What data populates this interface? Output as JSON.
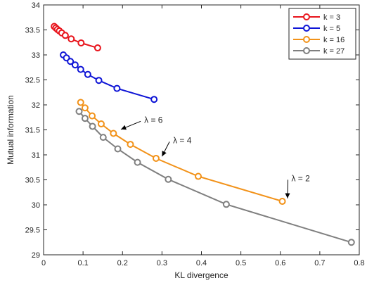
{
  "chart_data": {
    "type": "line",
    "title": "",
    "xlabel": "KL divergence",
    "ylabel": "Mutual information",
    "xlim": [
      0,
      0.8
    ],
    "ylim": [
      29,
      34
    ],
    "x_ticks": [
      0,
      0.1,
      0.2,
      0.3,
      0.4,
      0.5,
      0.6,
      0.7,
      0.8
    ],
    "x_tick_labels": [
      "0",
      "0.1",
      "0.2",
      "0.3",
      "0.4",
      "0.5",
      "0.6",
      "0.7",
      "0.8"
    ],
    "y_ticks": [
      29,
      29.5,
      30,
      30.5,
      31,
      31.5,
      32,
      32.5,
      33,
      33.5,
      34
    ],
    "y_tick_labels": [
      "29",
      "29.5",
      "30",
      "30.5",
      "31",
      "31.5",
      "32",
      "32.5",
      "33",
      "33.5",
      "34"
    ],
    "grid": false,
    "legend_position": "top-right",
    "series": [
      {
        "name": "k = 3",
        "color": "#e8141c",
        "marker": "circle",
        "x": [
          0.027,
          0.031,
          0.035,
          0.04,
          0.046,
          0.055,
          0.07,
          0.095,
          0.137
        ],
        "y": [
          33.57,
          33.54,
          33.51,
          33.48,
          33.44,
          33.39,
          33.32,
          33.24,
          33.14
        ]
      },
      {
        "name": "k = 5",
        "color": "#0f15d6",
        "marker": "circle",
        "x": [
          0.05,
          0.058,
          0.068,
          0.08,
          0.094,
          0.112,
          0.14,
          0.186,
          0.28
        ],
        "y": [
          33.0,
          32.94,
          32.87,
          32.8,
          32.71,
          32.61,
          32.49,
          32.33,
          32.11
        ]
      },
      {
        "name": "k = 16",
        "color": "#f29219",
        "marker": "circle",
        "x": [
          0.094,
          0.105,
          0.123,
          0.146,
          0.177,
          0.22,
          0.285,
          0.392,
          0.605
        ],
        "y": [
          32.05,
          31.94,
          31.78,
          31.62,
          31.43,
          31.21,
          30.93,
          30.57,
          30.07
        ]
      },
      {
        "name": "k = 27",
        "color": "#7f7f7f",
        "marker": "circle",
        "x": [
          0.09,
          0.105,
          0.124,
          0.151,
          0.188,
          0.238,
          0.316,
          0.463,
          0.78
        ],
        "y": [
          31.87,
          31.73,
          31.57,
          31.35,
          31.12,
          30.85,
          30.51,
          30.01,
          29.25
        ]
      }
    ],
    "annotations": [
      {
        "text": "λ = 6",
        "point": [
          0.196,
          31.51
        ],
        "text_at": [
          0.255,
          31.7
        ]
      },
      {
        "text": "λ = 4",
        "point": [
          0.3,
          30.97
        ],
        "text_at": [
          0.328,
          31.29
        ]
      },
      {
        "text": "λ = 2",
        "point": [
          0.618,
          30.13
        ],
        "text_at": [
          0.628,
          30.53
        ]
      }
    ]
  }
}
